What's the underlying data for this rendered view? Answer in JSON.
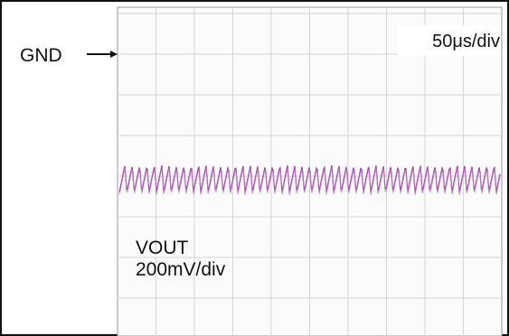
{
  "labels": {
    "ground": "GND",
    "time_scale": "50μs/div",
    "channel": "VOUT",
    "volt_scale": "200mV/div"
  }
}
